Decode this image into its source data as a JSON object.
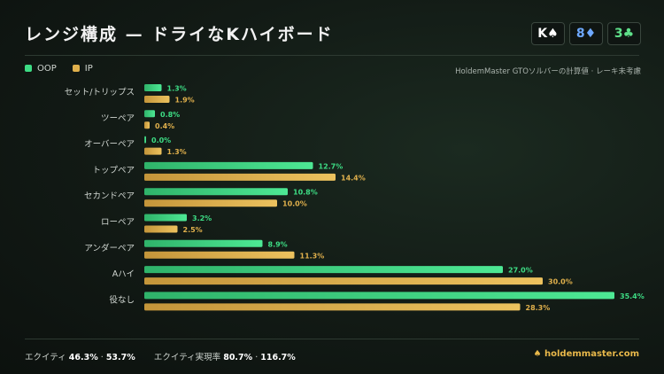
{
  "title": "レンジ構成 — ドライなKハイボード",
  "board": [
    {
      "rank": "K",
      "suit": "♠",
      "color": "#ffffff"
    },
    {
      "rank": "8",
      "suit": "♦",
      "color": "#6ea8ff"
    },
    {
      "rank": "3",
      "suit": "♣",
      "color": "#5fe08a"
    }
  ],
  "legend": [
    {
      "label": "OOP",
      "color": "#3ddc84"
    },
    {
      "label": "IP",
      "color": "#e0b04c"
    }
  ],
  "note": "HoldemMaster GTOソルバーの計算値 · レーキ未考慮",
  "chart_data": {
    "type": "bar",
    "orientation": "horizontal",
    "unit": "%",
    "xlim": [
      0,
      35.4
    ],
    "categories": [
      "セット/トリップス",
      "ツーペア",
      "オーバーペア",
      "トップペア",
      "セカンドペア",
      "ローペア",
      "アンダーペア",
      "Aハイ",
      "役なし"
    ],
    "series": [
      {
        "name": "OOP",
        "color": "#3ddc84",
        "values": [
          1.3,
          0.8,
          0.0,
          12.7,
          10.8,
          3.2,
          8.9,
          27.0,
          35.4
        ]
      },
      {
        "name": "IP",
        "color": "#e0b04c",
        "values": [
          1.9,
          0.4,
          1.3,
          14.4,
          10.0,
          2.5,
          11.3,
          30.0,
          28.3
        ]
      }
    ],
    "value_labels": {
      "OOP": [
        "1.3%",
        "0.8%",
        "0.0%",
        "12.7%",
        "10.8%",
        "3.2%",
        "8.9%",
        "27.0%",
        "35.4%"
      ],
      "IP": [
        "1.9%",
        "0.4%",
        "1.3%",
        "14.4%",
        "10.0%",
        "2.5%",
        "11.3%",
        "30.0%",
        "28.3%"
      ]
    }
  },
  "footer": {
    "equity_label": "エクイティ",
    "equity_oop": "46.3%",
    "equity_sep": " · ",
    "equity_ip": "53.7%",
    "realization_label": "エクイティ実現率",
    "realization_oop": "80.7%",
    "realization_sep": " · ",
    "realization_ip": "116.7%",
    "brand": "♠ holdemmaster.com"
  }
}
